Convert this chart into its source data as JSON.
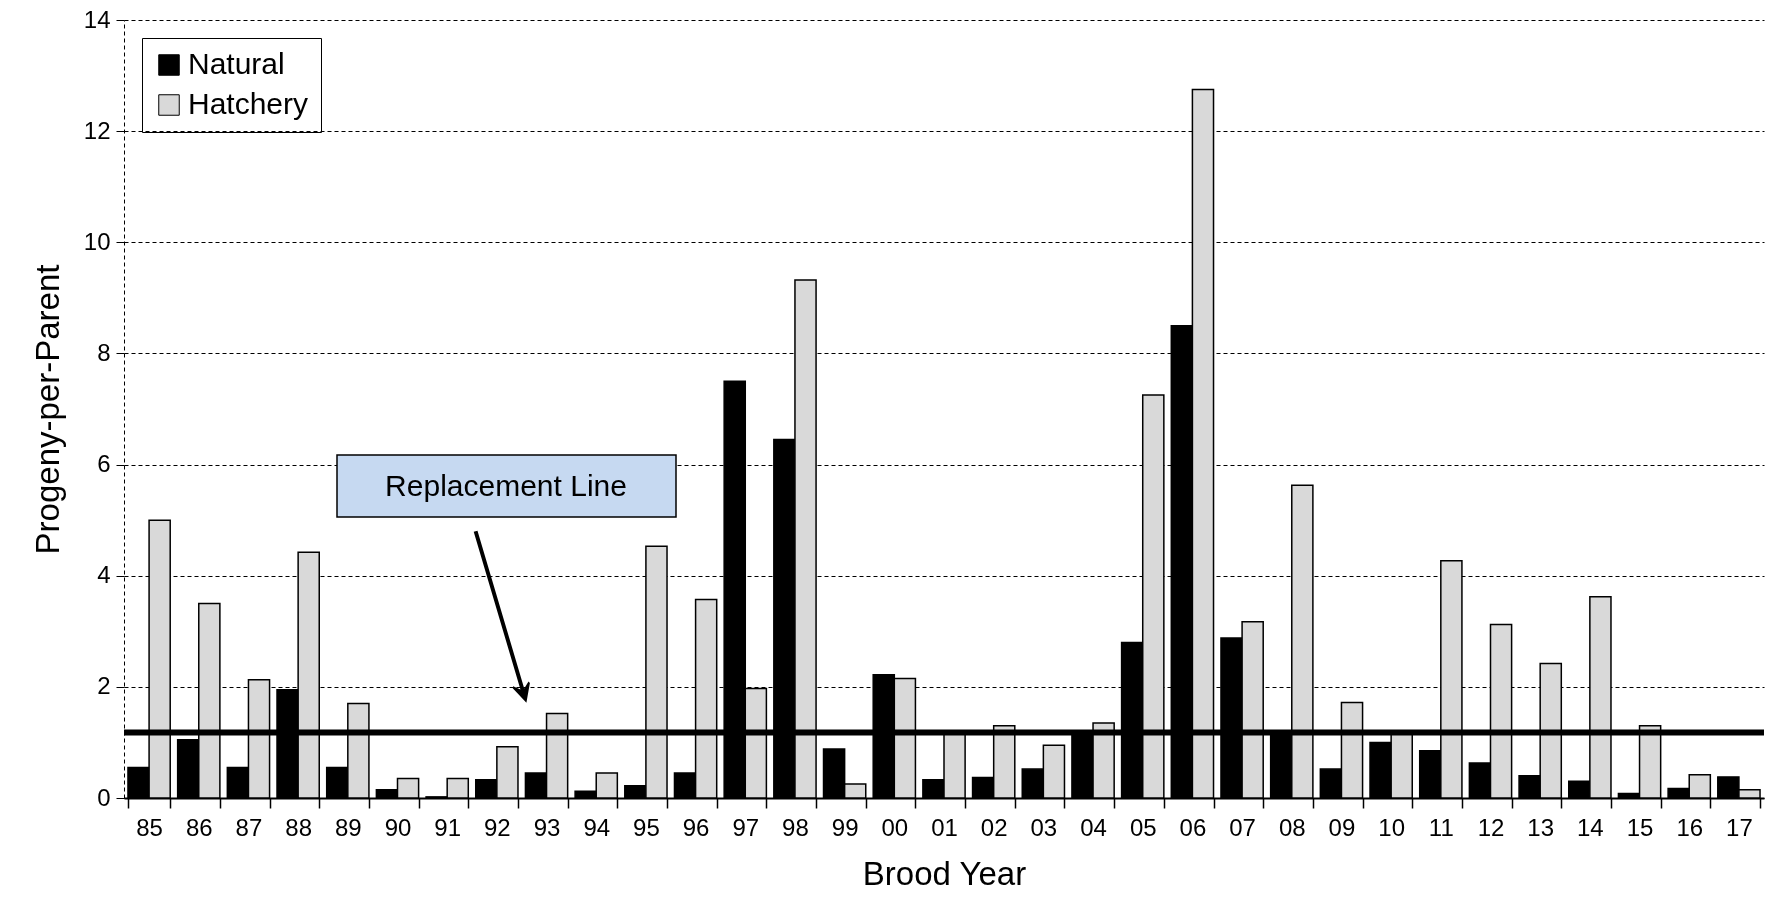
{
  "chart_data": {
    "type": "bar",
    "xlabel": "Brood Year",
    "ylabel": "Progeny-per-Parent",
    "categories": [
      "85",
      "86",
      "87",
      "88",
      "89",
      "90",
      "91",
      "92",
      "93",
      "94",
      "95",
      "96",
      "97",
      "98",
      "99",
      "00",
      "01",
      "02",
      "03",
      "04",
      "05",
      "06",
      "07",
      "08",
      "09",
      "10",
      "11",
      "12",
      "13",
      "14",
      "15",
      "16",
      "17"
    ],
    "series": [
      {
        "name": "Natural",
        "color": "#000000",
        "values": [
          0.55,
          1.05,
          0.55,
          1.95,
          0.55,
          0.15,
          0.02,
          0.33,
          0.45,
          0.12,
          0.22,
          0.45,
          7.5,
          6.45,
          0.88,
          2.22,
          0.33,
          0.37,
          0.52,
          1.2,
          2.8,
          8.5,
          2.88,
          1.2,
          0.52,
          1.0,
          0.85,
          0.63,
          0.4,
          0.3,
          0.08,
          0.17,
          0.38
        ]
      },
      {
        "name": "Hatchery",
        "color": "#d9d9d9",
        "values": [
          5.0,
          3.5,
          2.13,
          4.42,
          1.7,
          0.35,
          0.35,
          0.92,
          1.52,
          0.45,
          4.53,
          3.57,
          1.97,
          9.32,
          0.25,
          2.15,
          1.2,
          1.3,
          0.95,
          1.35,
          7.25,
          12.75,
          3.17,
          5.63,
          1.72,
          1.15,
          4.27,
          3.12,
          2.42,
          3.62,
          1.3,
          0.42,
          0.15
        ]
      }
    ],
    "ylim": [
      0,
      14
    ],
    "yticks": [
      0,
      2,
      4,
      6,
      8,
      10,
      12,
      14
    ],
    "grid": "y",
    "legend": "top left",
    "ref_lines": [
      {
        "axis": "y",
        "value": 1.18,
        "color": "#000000"
      }
    ],
    "annotations": [
      "Replacement Line"
    ]
  }
}
